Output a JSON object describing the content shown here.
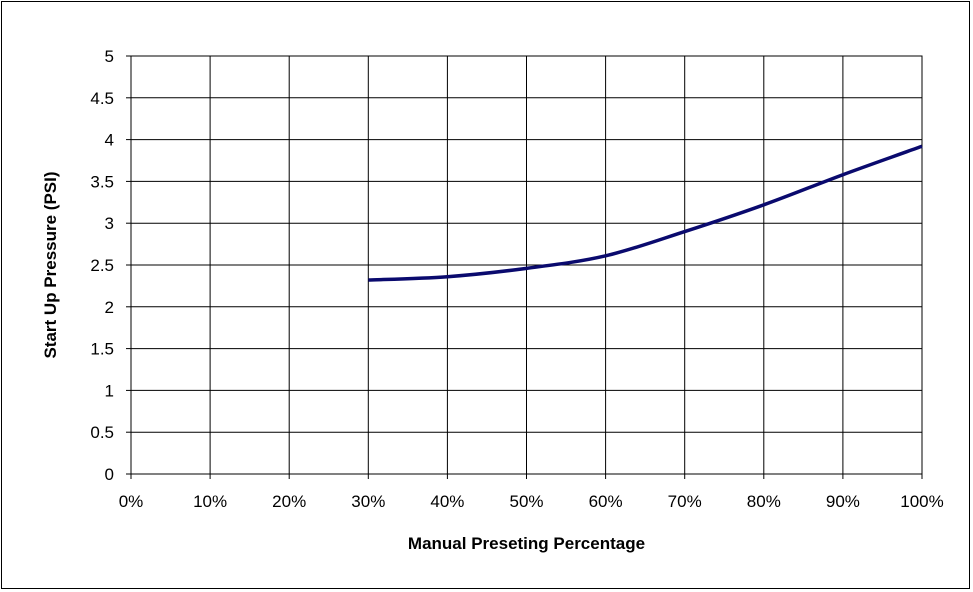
{
  "chart_data": {
    "type": "line",
    "title": "",
    "xlabel": "Manual Preseting Percentage",
    "ylabel": "Start Up Pressure (PSI)",
    "x_ticks": [
      "0%",
      "10%",
      "20%",
      "30%",
      "40%",
      "50%",
      "60%",
      "70%",
      "80%",
      "90%",
      "100%"
    ],
    "y_ticks": [
      "0",
      "0.5",
      "1",
      "1.5",
      "2",
      "2.5",
      "3",
      "3.5",
      "4",
      "4.5",
      "5"
    ],
    "xlim": [
      0,
      100
    ],
    "ylim": [
      0,
      5
    ],
    "grid": true,
    "legend": "none",
    "series": [
      {
        "color": "#0a0a6e",
        "x": [
          30,
          40,
          50,
          60,
          70,
          80,
          90,
          100
        ],
        "y": [
          2.32,
          2.36,
          2.46,
          2.61,
          2.9,
          3.22,
          3.58,
          3.92
        ]
      }
    ]
  }
}
